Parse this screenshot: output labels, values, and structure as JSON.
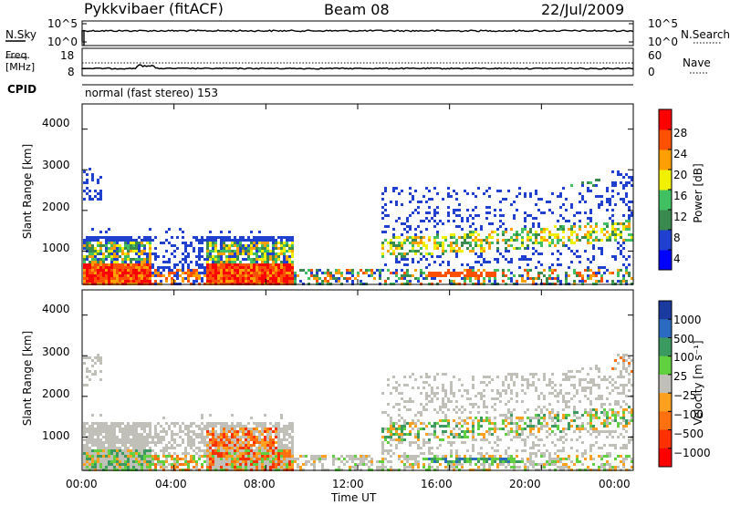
{
  "header": {
    "station": "Pykkvibaer (fitACF)",
    "beam": "Beam 08",
    "date": "22/Jul/2009"
  },
  "sky_panel": {
    "left_label": "N.Sky",
    "left_ticks": [
      "10^5",
      "10^0"
    ],
    "right_label": "N.Search",
    "right_ticks": [
      "10^5",
      "10^0"
    ],
    "line_style_right": "dotted"
  },
  "freq_panel": {
    "left_label_top": "Freq.",
    "left_label_unit": "[MHz]",
    "left_ticks": [
      "18",
      "8"
    ],
    "right_label": "Nave",
    "right_ticks": [
      "60",
      "0"
    ],
    "cpid_label": "CPID"
  },
  "cpid_text": "normal (fast stereo) 153",
  "chart_data": [
    {
      "type": "heatmap",
      "name": "power",
      "ylabel": "Slant Range [km]",
      "y_ticks": [
        "4000",
        "3000",
        "2000",
        "1000"
      ],
      "ylim": [
        180,
        4620
      ],
      "x_ticks": [
        "00:00",
        "04:00",
        "08:00",
        "12:00",
        "16:00",
        "20:00",
        "00:00"
      ],
      "xlim_hours": [
        0,
        24
      ],
      "colorbar": {
        "label": "Power [dB]",
        "tick_labels": [
          "28",
          "24",
          "20",
          "16",
          "12",
          "8",
          "4"
        ],
        "range": [
          0,
          32
        ],
        "colors": [
          "#0000ff",
          "#2040d0",
          "#3a8a50",
          "#40c060",
          "#f0f000",
          "#ffa000",
          "#ff5000",
          "#ff0000"
        ]
      },
      "regions": [
        {
          "t0": 0.0,
          "t1": 3.0,
          "r0": 180,
          "r1": 1400,
          "level": "mixed_high"
        },
        {
          "t0": 5.3,
          "t1": 9.2,
          "r0": 180,
          "r1": 1400,
          "level": "mixed_high"
        },
        {
          "t0": 9.0,
          "t1": 24.0,
          "r0": 180,
          "r1": 600,
          "level": "mixed_mid"
        },
        {
          "t0": 13.0,
          "t1": 24.0,
          "r0": 600,
          "r1": 2600,
          "level": "sparse_low"
        },
        {
          "t0": 19.5,
          "t1": 24.0,
          "r0": 2000,
          "r1": 3100,
          "level": "sparse_low"
        }
      ]
    },
    {
      "type": "heatmap",
      "name": "velocity",
      "ylabel": "Slant Range [km]",
      "y_ticks": [
        "4000",
        "3000",
        "2000",
        "1000"
      ],
      "ylim": [
        180,
        4620
      ],
      "x_ticks": [
        "00:00",
        "04:00",
        "08:00",
        "12:00",
        "16:00",
        "20:00",
        "00:00"
      ],
      "xlabel": "Time UT",
      "colorbar": {
        "label": "Velocity [m s⁻¹]",
        "tick_labels": [
          "1000",
          "500",
          "100",
          "25",
          "−25",
          "−100",
          "−500",
          "−1000"
        ],
        "colors": [
          "#1a3aa0",
          "#2a6abf",
          "#3a9a60",
          "#60d040",
          "#c0c0b8",
          "#ffa020",
          "#ff7010",
          "#ff3000",
          "#ff0000"
        ]
      }
    }
  ],
  "colors": {
    "axis": "#000000",
    "ground_scatter": "#c0c0b8"
  }
}
